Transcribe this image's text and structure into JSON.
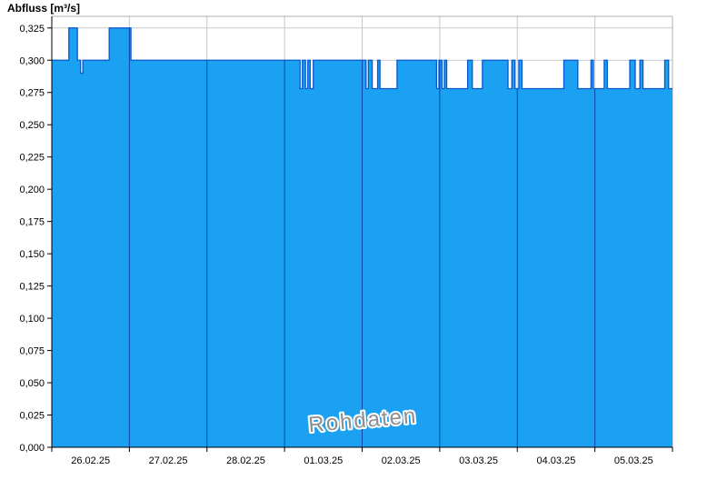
{
  "chart_data": {
    "type": "area",
    "title": "Abfluss [m³/s]",
    "watermark": "Rohdaten",
    "unit": "m³/s",
    "grid": true,
    "legend": "none",
    "x_domain_days": [
      0,
      8
    ],
    "x_tick_labels": [
      "26.02.25",
      "27.02.25",
      "28.02.25",
      "01.03.25",
      "02.03.25",
      "03.03.25",
      "04.03.25",
      "05.03.25"
    ],
    "ylim": [
      0,
      0.334
    ],
    "y_ticks": [
      0.0,
      0.025,
      0.05,
      0.075,
      0.1,
      0.125,
      0.15,
      0.175,
      0.2,
      0.225,
      0.25,
      0.275,
      0.3,
      0.325
    ],
    "y_tick_labels": [
      "0,000",
      "0,025",
      "0,050",
      "0,075",
      "0,100",
      "0,125",
      "0,150",
      "0,175",
      "0,200",
      "0,225",
      "0,250",
      "0,275",
      "0,300",
      "0,325"
    ],
    "value_levels": [
      0.278,
      0.29,
      0.3,
      0.325
    ],
    "series": [
      {
        "name": "Abfluss Rohdaten",
        "step_points": [
          [
            0.0,
            0.3
          ],
          [
            0.22,
            0.325
          ],
          [
            0.33,
            0.3
          ],
          [
            0.37,
            0.29
          ],
          [
            0.4,
            0.3
          ],
          [
            0.74,
            0.325
          ],
          [
            1.02,
            0.3
          ],
          [
            3.2,
            0.278
          ],
          [
            3.23,
            0.3
          ],
          [
            3.27,
            0.278
          ],
          [
            3.3,
            0.3
          ],
          [
            3.33,
            0.278
          ],
          [
            3.37,
            0.3
          ],
          [
            4.05,
            0.278
          ],
          [
            4.08,
            0.3
          ],
          [
            4.13,
            0.278
          ],
          [
            4.2,
            0.3
          ],
          [
            4.23,
            0.278
          ],
          [
            4.45,
            0.3
          ],
          [
            4.96,
            0.278
          ],
          [
            4.99,
            0.3
          ],
          [
            5.03,
            0.278
          ],
          [
            5.06,
            0.3
          ],
          [
            5.09,
            0.278
          ],
          [
            5.36,
            0.3
          ],
          [
            5.42,
            0.278
          ],
          [
            5.55,
            0.3
          ],
          [
            5.88,
            0.278
          ],
          [
            5.93,
            0.3
          ],
          [
            5.97,
            0.278
          ],
          [
            6.02,
            0.3
          ],
          [
            6.06,
            0.278
          ],
          [
            6.6,
            0.3
          ],
          [
            6.78,
            0.278
          ],
          [
            6.95,
            0.3
          ],
          [
            6.98,
            0.278
          ],
          [
            7.12,
            0.3
          ],
          [
            7.16,
            0.278
          ],
          [
            7.45,
            0.3
          ],
          [
            7.52,
            0.278
          ],
          [
            7.58,
            0.3
          ],
          [
            7.62,
            0.278
          ],
          [
            7.9,
            0.3
          ],
          [
            7.95,
            0.278
          ],
          [
            8.0,
            0.278
          ]
        ]
      }
    ],
    "colors": {
      "fill": "#1BA1F2",
      "line": "#0857CC",
      "day_line_in_fill": "#0E47A8",
      "grid": "#c8c8c8",
      "border": "#b0b0b0",
      "axis": "#000000",
      "watermark": "#8f8f8f",
      "background": "#ffffff"
    }
  }
}
